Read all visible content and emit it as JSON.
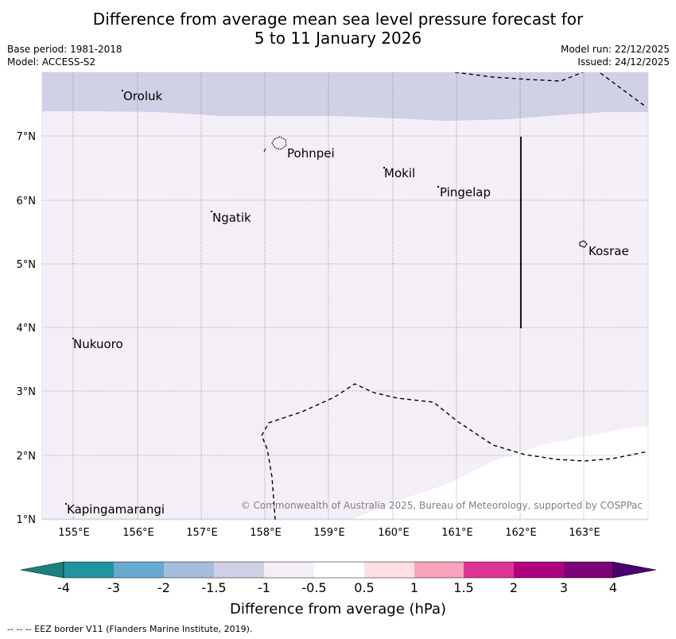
{
  "title": {
    "line1": "Difference from average mean sea level pressure forecast for",
    "line2": "5 to 11 January 2026"
  },
  "meta": {
    "base_period": "Base period: 1981-2018",
    "model": "Model: ACCESS-S2",
    "model_run": "Model run: 22/12/2025",
    "issued": "Issued: 24/12/2025"
  },
  "map": {
    "lon_labels": [
      "155°E",
      "156°E",
      "157°E",
      "158°E",
      "159°E",
      "160°E",
      "161°E",
      "162°E",
      "163°E"
    ],
    "lat_labels": [
      "7°N",
      "6°N",
      "5°N",
      "4°N",
      "3°N",
      "2°N",
      "1°N"
    ],
    "places": [
      "Oroluk",
      "Pohnpei",
      "Mokil",
      "Pingelap",
      "Ngatik",
      "Kosrae",
      "Nukuoro",
      "Kapingamarangi"
    ],
    "copyright": "© Commonwealth of Australia 2025, Bureau of Meteorology, supported by COSPPac",
    "colors": {
      "band_neg15_to_neg1": "#d0d1e6",
      "band_neg1_to_neg05": "#f4eef6",
      "band_neg05_to_05": "#ffffff"
    }
  },
  "colorbar": {
    "ticks": [
      "-4",
      "-3",
      "-2",
      "-1.5",
      "-1",
      "-0.5",
      "0.5",
      "1",
      "1.5",
      "2",
      "3",
      "4"
    ],
    "colors": [
      "#1b7f7f",
      "#2094a0",
      "#67a9cf",
      "#a6bddb",
      "#d0d1e6",
      "#f4eef6",
      "#ffffff",
      "#fde0e1",
      "#f7a4bd",
      "#dd3497",
      "#ae017e",
      "#7a0177",
      "#49006a"
    ],
    "label": "Difference from average (hPa)"
  },
  "footer": "--  --  -- EEZ border V11 (Flanders Marine Institute, 2019)."
}
